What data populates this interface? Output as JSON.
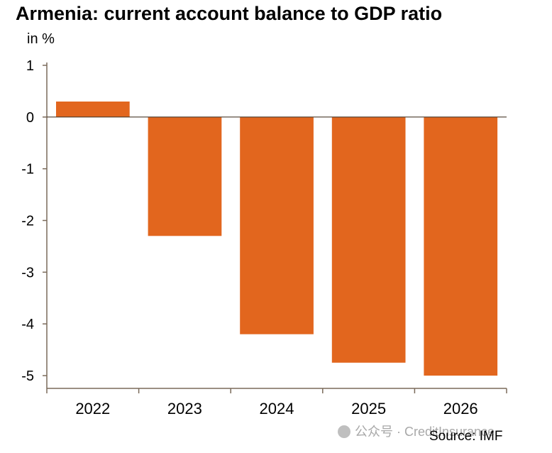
{
  "chart_data": {
    "type": "bar",
    "title": "Armenia: current account balance to GDP ratio",
    "ylabel": "in %",
    "xlabel": "",
    "categories": [
      "2022",
      "2023",
      "2024",
      "2025",
      "2026"
    ],
    "values": [
      0.3,
      -2.3,
      -4.2,
      -4.75,
      -5.0
    ],
    "ylim": [
      -5,
      1
    ],
    "yticks": [
      1,
      0,
      -1,
      -2,
      -3,
      -4,
      -5
    ],
    "grid": false,
    "colors": {
      "bar": "#E2661E",
      "axis": "#7a6a5a",
      "zero_line": "#4a3a2a"
    }
  },
  "source": "Source: IMF",
  "watermark": "公众号 · CreditInsurance"
}
